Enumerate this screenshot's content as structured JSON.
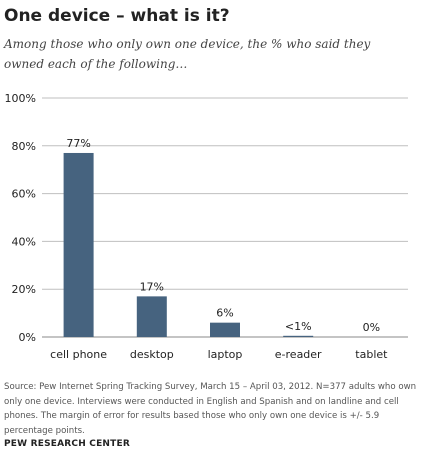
{
  "header": {
    "title": "One device – what is it?",
    "subtitle": "Among those who only own one device, the % who said they owned each of the following…"
  },
  "chart_data": {
    "type": "bar",
    "title": "One device – what is it?",
    "subtitle": "Among those who only own one device, the % who said they owned each of the following…",
    "categories": [
      "cell phone",
      "desktop",
      "laptop",
      "e-reader",
      "tablet"
    ],
    "values": [
      77,
      17,
      6,
      0.5,
      0
    ],
    "data_labels": [
      "77%",
      "17%",
      "6%",
      "<1%",
      "0%"
    ],
    "ylim": [
      0,
      100
    ],
    "yticks": [
      0,
      20,
      40,
      60,
      80,
      100
    ],
    "ytick_labels": [
      "0%",
      "20%",
      "40%",
      "60%",
      "80%",
      "100%"
    ],
    "xlabel": "",
    "ylabel": "",
    "grid": true,
    "bar_color": "#46637f",
    "grid_color": "#bfbfbf"
  },
  "footer": {
    "source": "Source: Pew Internet Spring Tracking Survey, March 15 – April 03, 2012. N=377 adults who own only one device. Interviews were conducted in English and Spanish and on landline and cell phones. The margin of error for results based those who only own one device is +/- 5.9 percentage points.",
    "org": "PEW RESEARCH CENTER"
  }
}
